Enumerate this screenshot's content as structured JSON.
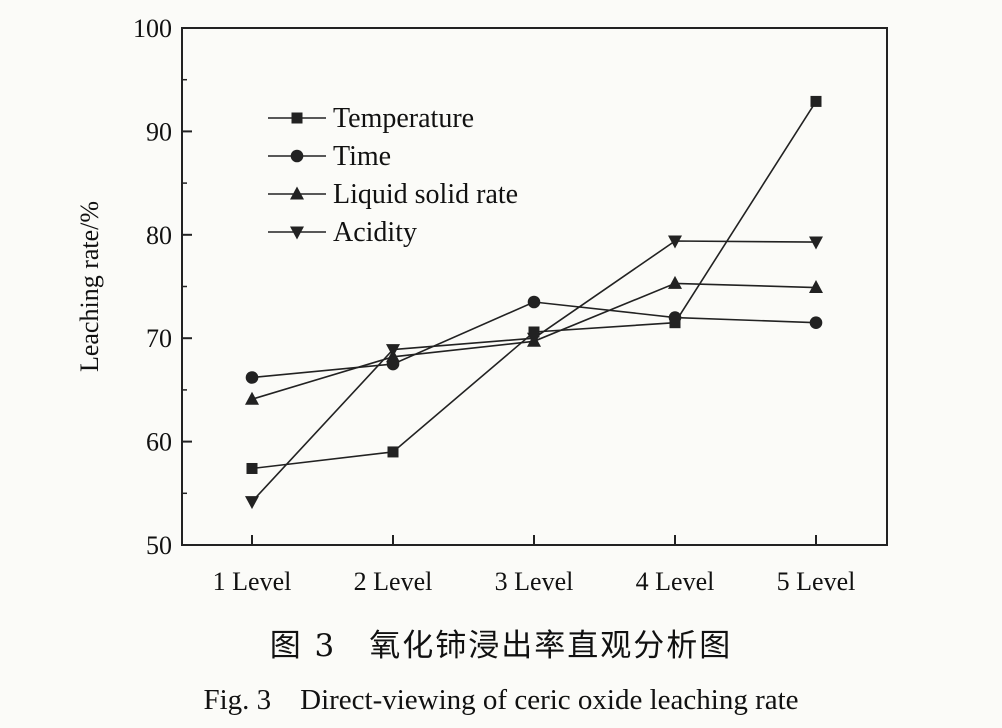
{
  "caption_cn": "图 3　氧化铈浸出率直观分析图",
  "caption_en": "Fig. 3　Direct-viewing of ceric oxide leaching rate",
  "chart_data": {
    "type": "line",
    "title": "",
    "xlabel": "",
    "ylabel": "Leaching rate/%",
    "categories": [
      "1 Level",
      "2 Level",
      "3 Level",
      "4 Level",
      "5 Level"
    ],
    "ylim": [
      50,
      100
    ],
    "yticks": [
      50,
      60,
      70,
      80,
      90,
      100
    ],
    "grid": false,
    "legend_position": "top-left",
    "line_color": "#222222",
    "series": [
      {
        "name": "Temperature",
        "marker": "square",
        "values": [
          57.4,
          59.0,
          70.6,
          71.5,
          92.9
        ]
      },
      {
        "name": "Time",
        "marker": "circle",
        "values": [
          66.2,
          67.5,
          73.5,
          72.0,
          71.5
        ]
      },
      {
        "name": "Liquid solid rate",
        "marker": "triangle-up",
        "values": [
          64.1,
          68.2,
          69.7,
          75.3,
          74.9
        ]
      },
      {
        "name": "Acidity",
        "marker": "triangle-down",
        "values": [
          54.2,
          68.9,
          70.0,
          79.4,
          79.3
        ]
      }
    ]
  }
}
